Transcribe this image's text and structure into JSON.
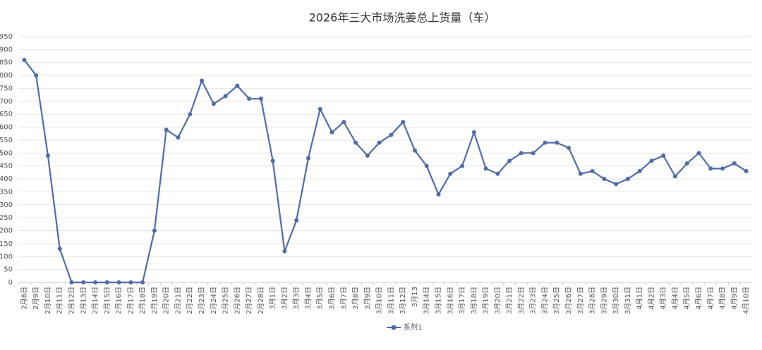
{
  "chart_data": {
    "type": "line",
    "title": "2026年三大市场洗姜总上货量（车）",
    "categories": [
      "2月8日",
      "2月9日",
      "2月10日",
      "2月11日",
      "2月12日",
      "2月13日",
      "2月14日",
      "2月15日",
      "2月16日",
      "2月17日",
      "2月18日",
      "2月19日",
      "2月20日",
      "2月21日",
      "2月22日",
      "2月23日",
      "2月24日",
      "2月25日",
      "2月26日",
      "2月27日",
      "2月28日",
      "3月1日",
      "3月2日",
      "3月3日",
      "3月4日",
      "3月5日",
      "3月6日",
      "3月7日",
      "3月8日",
      "3月9日",
      "3月10日",
      "3月11日",
      "3月12日",
      "3月13",
      "3月14日",
      "3月15日",
      "3月16日",
      "3月17日",
      "3月18日",
      "3月19日",
      "3月20日",
      "3月21日",
      "3月22日",
      "3月23日",
      "3月24日",
      "3月25日",
      "3月26日",
      "3月27日",
      "3月28日",
      "3月29日",
      "3月30日",
      "3月31日",
      "4月1日",
      "4月2日",
      "4月3日",
      "4月4日",
      "4月5日",
      "4月6日",
      "4月7日",
      "4月8日",
      "4月9日",
      "4月10日"
    ],
    "series": [
      {
        "name": "系列1",
        "color": "#4f6ca8",
        "values": [
          860,
          800,
          490,
          130,
          0,
          0,
          0,
          0,
          0,
          0,
          0,
          200,
          590,
          560,
          650,
          780,
          690,
          720,
          760,
          710,
          710,
          470,
          120,
          240,
          480,
          670,
          580,
          620,
          540,
          490,
          540,
          570,
          620,
          510,
          450,
          340,
          420,
          450,
          580,
          440,
          420,
          470,
          500,
          500,
          540,
          540,
          520,
          420,
          430,
          400,
          380,
          400,
          430,
          470,
          490,
          410,
          460,
          500,
          440,
          440,
          460,
          430
        ]
      }
    ],
    "ylim": [
      0,
      950
    ],
    "yticks": [
      0,
      50,
      100,
      150,
      200,
      250,
      300,
      350,
      400,
      450,
      500,
      550,
      600,
      650,
      700,
      750,
      800,
      850,
      900,
      950
    ],
    "grid": true,
    "legend": "bottom"
  }
}
